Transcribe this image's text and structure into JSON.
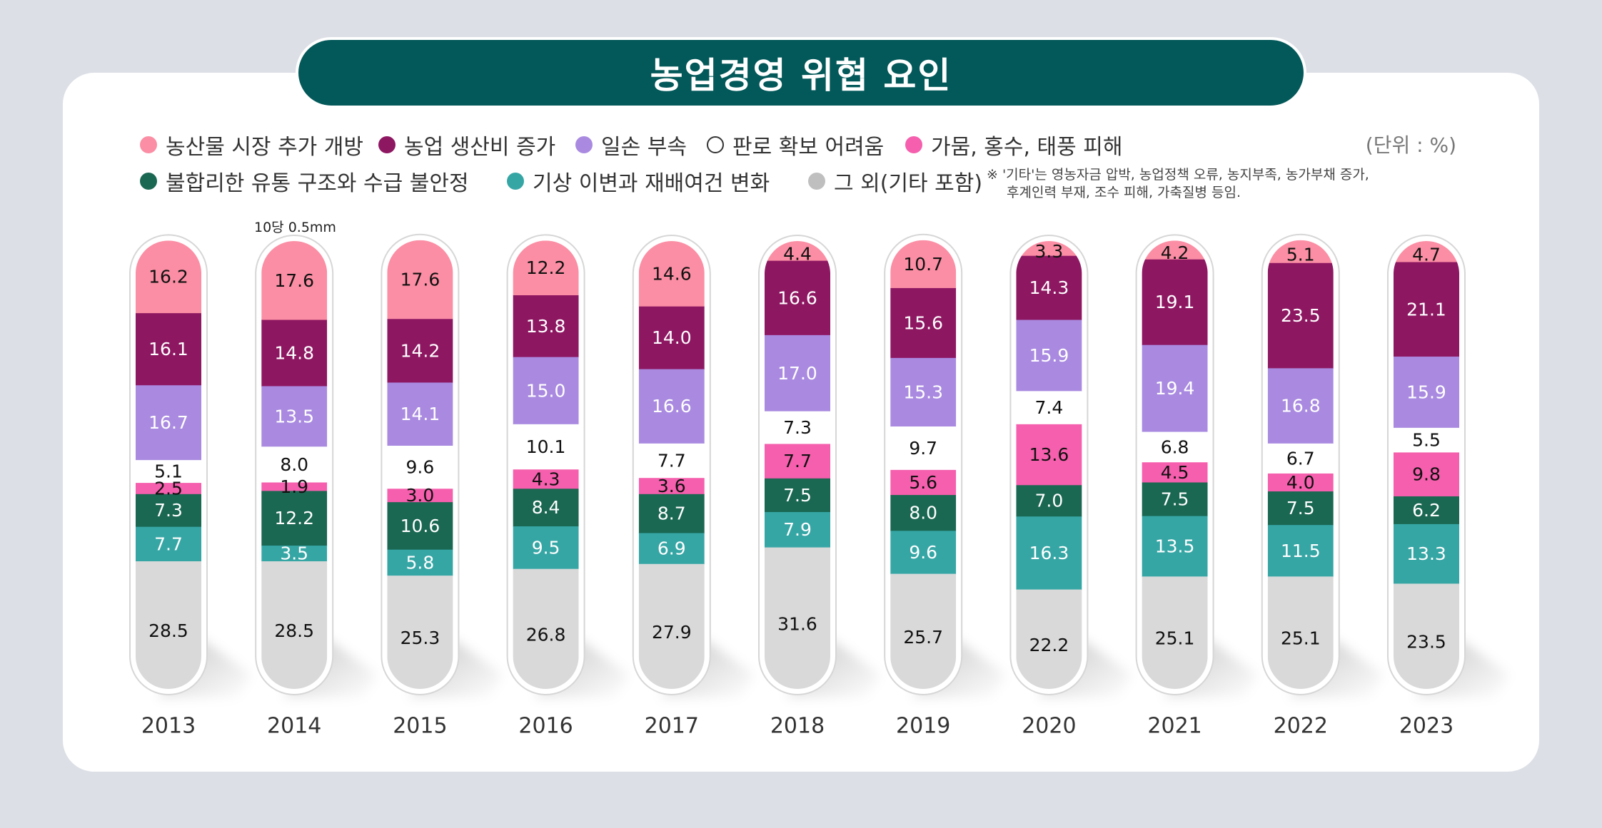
{
  "title": "농업경영 위협 요인",
  "unit_label": "(단위 : %)",
  "annotation": "10당 0.5mm",
  "note_lines": [
    "※ '기타'는 영농자금 압박, 농업정책 오류, 농지부족, 농가부채 증가,",
    "후계인력 부재, 조수 피해, 가축질병 등임."
  ],
  "colors": {
    "background": "#dcdfe6",
    "card": "#ffffff",
    "title_bg": "#035859"
  },
  "chart_data": {
    "type": "bar",
    "stacked": true,
    "title": "농업경영 위협 요인",
    "unit": "%",
    "categories": [
      "2013",
      "2014",
      "2015",
      "2016",
      "2017",
      "2018",
      "2019",
      "2020",
      "2021",
      "2022",
      "2023"
    ],
    "series": [
      {
        "name": "농산물 시장 추가 개방",
        "color": "#fb8ea4",
        "text_color": "#111111",
        "values": [
          16.2,
          17.6,
          17.6,
          12.2,
          14.6,
          4.4,
          10.7,
          3.3,
          4.2,
          5.1,
          4.7
        ]
      },
      {
        "name": "농업 생산비 증가",
        "color": "#8e1762",
        "text_color": "#ffffff",
        "values": [
          16.1,
          14.8,
          14.2,
          13.8,
          14.0,
          16.6,
          15.6,
          14.3,
          19.1,
          23.5,
          21.1
        ]
      },
      {
        "name": "일손 부속",
        "color": "#a98ae0",
        "text_color": "#ffffff",
        "values": [
          16.7,
          13.5,
          14.1,
          15.0,
          16.6,
          17.0,
          15.3,
          15.9,
          19.4,
          16.8,
          15.9
        ]
      },
      {
        "name": "판로 확보 어려움",
        "color": "#ffffff",
        "text_color": "#111111",
        "values": [
          5.1,
          8.0,
          9.6,
          10.1,
          7.7,
          7.3,
          9.7,
          7.4,
          6.8,
          6.7,
          5.5
        ]
      },
      {
        "name": "가뭄, 홍수, 태풍 피해",
        "color": "#f55fad",
        "text_color": "#111111",
        "values": [
          2.5,
          1.9,
          3.0,
          4.3,
          3.6,
          7.7,
          5.6,
          13.6,
          4.5,
          4.0,
          9.8
        ]
      },
      {
        "name": "불합리한 유통 구조와 수급 불안정",
        "color": "#1a6752",
        "text_color": "#ffffff",
        "values": [
          7.3,
          12.2,
          10.6,
          8.4,
          8.7,
          7.5,
          8.0,
          7.0,
          7.5,
          7.5,
          6.2
        ]
      },
      {
        "name": "기상 이변과 재배여건 변화",
        "color": "#36a6a5",
        "text_color": "#ffffff",
        "values": [
          7.7,
          3.5,
          5.8,
          9.5,
          6.9,
          7.9,
          9.6,
          16.3,
          13.5,
          11.5,
          13.3
        ]
      },
      {
        "name": "그 외(기타 포함)",
        "color": "#d9d9d9",
        "text_color": "#111111",
        "values": [
          28.5,
          28.5,
          25.3,
          26.8,
          27.9,
          31.6,
          25.7,
          22.2,
          25.1,
          25.1,
          23.5
        ]
      }
    ]
  }
}
